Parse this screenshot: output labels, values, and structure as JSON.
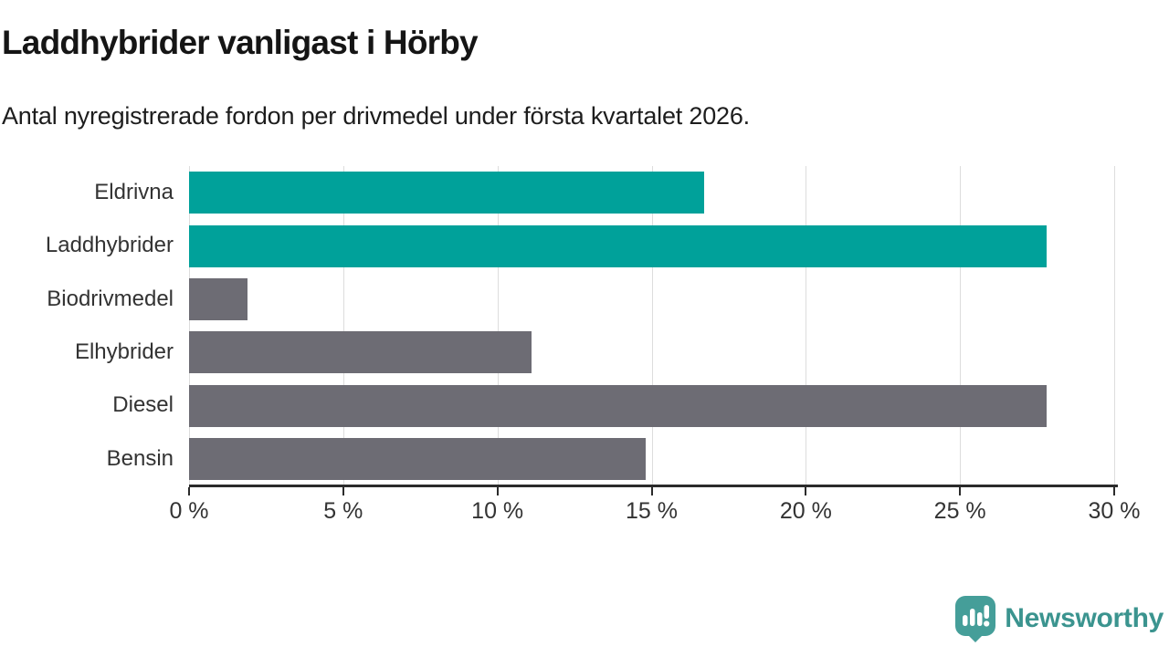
{
  "chart": {
    "title": "Laddhybrider vanligast i Hörby",
    "subtitle": "Antal nyregistrerade fordon per drivmedel under första kvartalet 2026."
  },
  "chart_data": {
    "type": "bar",
    "orientation": "horizontal",
    "title": "Laddhybrider vanligast i Hörby",
    "subtitle": "Antal nyregistrerade fordon per drivmedel under första kvartalet 2026.",
    "categories": [
      "Eldrivna",
      "Laddhybrider",
      "Biodrivmedel",
      "Elhybrider",
      "Diesel",
      "Bensin"
    ],
    "values": [
      16.7,
      27.8,
      1.9,
      11.1,
      27.8,
      14.8
    ],
    "unit": "%",
    "xlabel": "",
    "ylabel": "",
    "xlim": [
      0,
      30
    ],
    "xticks": [
      0,
      5,
      10,
      15,
      20,
      25,
      30
    ],
    "xtick_labels": [
      "0 %",
      "5 %",
      "10 %",
      "15 %",
      "20 %",
      "25 %",
      "30 %"
    ],
    "grid": true,
    "legend": "none",
    "bar_colors": [
      "#00a19a",
      "#00a19a",
      "#6d6c74",
      "#6d6c74",
      "#6d6c74",
      "#6d6c74"
    ]
  },
  "colors": {
    "highlight": "#00a19a",
    "base": "#6d6c74",
    "gridline": "#dddddd",
    "axis": "#2b2b2b",
    "text": "#333333",
    "logo": "#3b948f"
  },
  "footer": {
    "brand": "Newsworthy",
    "logo_icon": "newsworthy-speech-bubble-barchart-icon"
  }
}
